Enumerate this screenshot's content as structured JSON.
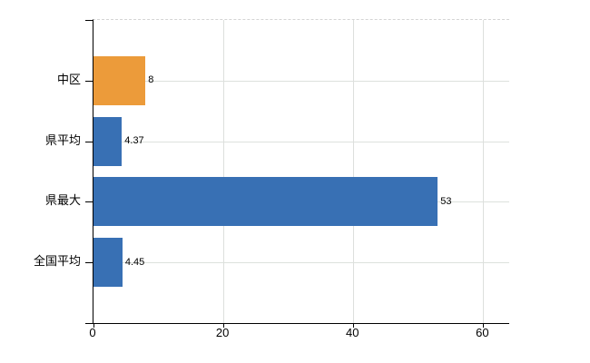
{
  "chart_data": {
    "type": "bar",
    "orientation": "horizontal",
    "title": "",
    "xlabel": "",
    "ylabel": "",
    "categories": [
      "中区",
      "県平均",
      "県最大",
      "全国平均"
    ],
    "values": [
      8,
      4.37,
      53,
      4.45
    ],
    "value_labels": [
      "8",
      "4.37",
      "53",
      "4.45"
    ],
    "bar_colors": [
      "#ec9b3a",
      "#3870b4",
      "#3870b4",
      "#3870b4"
    ],
    "xticks": [
      0,
      20,
      40,
      60
    ],
    "xtick_labels": [
      "0",
      "20",
      "40",
      "60"
    ],
    "xlim": [
      0,
      64
    ],
    "grid": "on",
    "legend": "none",
    "colors": {
      "bar_blue": "#3870b4",
      "bar_orange": "#ec9b3a",
      "gridline": "#dddddd",
      "axis": "#000000",
      "background": "#ffffff"
    }
  }
}
